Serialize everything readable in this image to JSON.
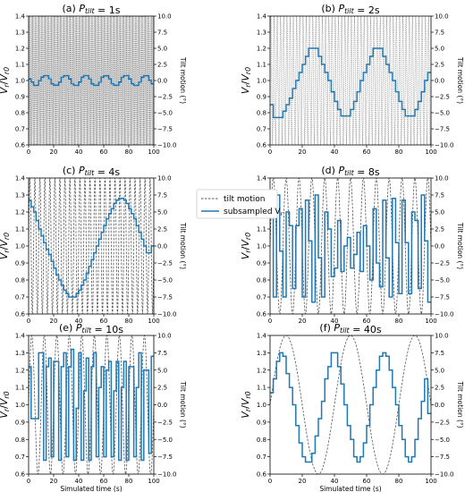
{
  "legend": {
    "tilt_label": "tilt motion",
    "sub_label": "subsampled V_r"
  },
  "shared": {
    "y_left_label": "V_r/V_r0",
    "y_right_label": "Tilt motion (°)",
    "x_label": "Simulated time (s)",
    "xlim": [
      0,
      100
    ],
    "xticks": [
      "0",
      "20",
      "40",
      "60",
      "80",
      "100"
    ],
    "ylim_left": [
      0.6,
      1.4
    ],
    "yticks_left": [
      "0.6",
      "0.7",
      "0.8",
      "0.9",
      "1.0",
      "1.1",
      "1.2",
      "1.3",
      "1.4"
    ],
    "ylim_right": [
      -10,
      10
    ],
    "yticks_right": [
      "-10.0",
      "-7.5",
      "-5.0",
      "-2.5",
      "0.0",
      "2.5",
      "5.0",
      "7.5",
      "10.0"
    ],
    "colors": {
      "subsampled": "#1f77b4",
      "tilt": "#555555"
    }
  },
  "chart_data": [
    {
      "type": "line",
      "title": "(a) P_tilt = 1s",
      "period_s": 1,
      "tilt_amplitude_deg": 10,
      "series": [
        {
          "name": "tilt motion",
          "style": "dashed",
          "axis": "right"
        },
        {
          "name": "subsampled V_r",
          "style": "step",
          "axis": "left",
          "x": [
            0,
            2,
            4,
            6,
            8,
            10,
            12,
            14,
            16,
            18,
            20,
            22,
            24,
            26,
            28,
            30,
            32,
            34,
            36,
            38,
            40,
            42,
            44,
            46,
            48,
            50,
            52,
            54,
            56,
            58,
            60,
            62,
            64,
            66,
            68,
            70,
            72,
            74,
            76,
            78,
            80,
            82,
            84,
            86,
            88,
            90,
            92,
            94,
            96,
            98
          ],
          "values": [
            1.01,
            0.99,
            0.97,
            0.97,
            1.0,
            1.02,
            1.03,
            1.03,
            1.01,
            0.98,
            0.97,
            0.97,
            0.99,
            1.02,
            1.03,
            1.03,
            1.01,
            0.98,
            0.97,
            0.97,
            0.99,
            1.02,
            1.03,
            1.03,
            1.01,
            0.98,
            0.97,
            0.97,
            0.99,
            1.02,
            1.03,
            1.03,
            1.01,
            0.98,
            0.97,
            0.97,
            0.99,
            1.02,
            1.03,
            1.03,
            1.01,
            0.98,
            0.97,
            0.97,
            0.99,
            1.02,
            1.03,
            1.03,
            1.0,
            0.98
          ]
        }
      ]
    },
    {
      "type": "line",
      "title": "(b) P_tilt = 2s",
      "period_s": 2,
      "tilt_amplitude_deg": 10,
      "series": [
        {
          "name": "tilt motion",
          "style": "dashed",
          "axis": "right"
        },
        {
          "name": "subsampled V_r",
          "style": "step",
          "axis": "left",
          "x": [
            0,
            2,
            4,
            6,
            8,
            10,
            12,
            14,
            16,
            18,
            20,
            22,
            24,
            26,
            28,
            30,
            32,
            34,
            36,
            38,
            40,
            42,
            44,
            46,
            48,
            50,
            52,
            54,
            56,
            58,
            60,
            62,
            64,
            66,
            68,
            70,
            72,
            74,
            76,
            78,
            80,
            82,
            84,
            86,
            88,
            90,
            92,
            94,
            96,
            98
          ],
          "values": [
            0.85,
            0.77,
            0.77,
            0.77,
            0.81,
            0.85,
            0.89,
            0.95,
            1.0,
            1.05,
            1.1,
            1.15,
            1.2,
            1.2,
            1.2,
            1.15,
            1.1,
            1.05,
            1.0,
            0.93,
            0.87,
            0.82,
            0.78,
            0.78,
            0.78,
            0.82,
            0.87,
            0.93,
            1.0,
            1.05,
            1.1,
            1.15,
            1.2,
            1.2,
            1.2,
            1.15,
            1.1,
            1.05,
            1.0,
            0.93,
            0.87,
            0.82,
            0.78,
            0.78,
            0.78,
            0.82,
            0.87,
            0.93,
            1.0,
            1.05
          ]
        }
      ]
    },
    {
      "type": "line",
      "title": "(c) P_tilt = 4s",
      "period_s": 4,
      "tilt_amplitude_deg": 10,
      "series": [
        {
          "name": "tilt motion",
          "style": "dashed",
          "axis": "right"
        },
        {
          "name": "subsampled V_r",
          "style": "step",
          "axis": "left",
          "x": [
            0,
            2,
            4,
            6,
            8,
            10,
            12,
            14,
            16,
            18,
            20,
            22,
            24,
            26,
            28,
            30,
            32,
            34,
            36,
            38,
            40,
            42,
            44,
            46,
            48,
            50,
            52,
            54,
            56,
            58,
            60,
            62,
            64,
            66,
            68,
            70,
            72,
            74,
            76,
            78,
            80,
            82,
            84,
            86,
            88,
            90,
            92,
            94,
            96,
            98
          ],
          "values": [
            1.27,
            1.23,
            1.2,
            1.15,
            1.1,
            1.06,
            1.02,
            0.98,
            0.95,
            0.91,
            0.87,
            0.83,
            0.8,
            0.77,
            0.74,
            0.72,
            0.7,
            0.7,
            0.7,
            0.72,
            0.74,
            0.77,
            0.8,
            0.84,
            0.88,
            0.92,
            0.96,
            1.0,
            1.04,
            1.08,
            1.12,
            1.16,
            1.19,
            1.22,
            1.25,
            1.27,
            1.28,
            1.28,
            1.27,
            1.25,
            1.22,
            1.19,
            1.16,
            1.12,
            1.08,
            1.04,
            1.0,
            0.96,
            0.96,
            1.0
          ]
        }
      ]
    },
    {
      "type": "line",
      "title": "(d) P_tilt = 8s",
      "period_s": 8,
      "tilt_amplitude_deg": 10,
      "series": [
        {
          "name": "tilt motion",
          "style": "dashed",
          "axis": "right"
        },
        {
          "name": "subsampled V_r",
          "style": "step",
          "axis": "left",
          "x": [
            0,
            2,
            4,
            6,
            8,
            10,
            12,
            14,
            16,
            18,
            20,
            22,
            24,
            26,
            28,
            30,
            32,
            34,
            36,
            38,
            40,
            42,
            44,
            46,
            48,
            50,
            52,
            54,
            56,
            58,
            60,
            62,
            64,
            66,
            68,
            70,
            72,
            74,
            76,
            78,
            80,
            82,
            84,
            86,
            88,
            90,
            92,
            94,
            96,
            98
          ],
          "values": [
            1.27,
            0.7,
            1.3,
            0.97,
            0.7,
            1.2,
            1.12,
            0.75,
            1.12,
            1.22,
            0.7,
            1.27,
            1.03,
            0.67,
            1.3,
            0.93,
            0.7,
            1.2,
            1.1,
            0.82,
            0.87,
            1.15,
            0.85,
            1.0,
            1.05,
            0.87,
            0.95,
            1.08,
            0.85,
            1.12,
            1.0,
            0.8,
            1.22,
            0.9,
            0.76,
            1.27,
            0.93,
            0.7,
            1.28,
            1.02,
            0.72,
            1.27,
            1.02,
            0.72,
            1.2,
            1.15,
            0.75,
            1.3,
            1.03,
            0.67
          ]
        }
      ]
    },
    {
      "type": "line",
      "title": "(e) P_tilt = 10s",
      "period_s": 10,
      "tilt_amplitude_deg": 10,
      "series": [
        {
          "name": "tilt motion",
          "style": "dashed",
          "axis": "right"
        },
        {
          "name": "subsampled V_r",
          "style": "step",
          "axis": "left",
          "x": [
            0,
            2,
            4,
            6,
            8,
            10,
            12,
            14,
            16,
            18,
            20,
            22,
            24,
            26,
            28,
            30,
            32,
            34,
            36,
            38,
            40,
            42,
            44,
            46,
            48,
            50,
            52,
            54,
            56,
            58,
            60,
            62,
            64,
            66,
            68,
            70,
            72,
            74,
            76,
            78,
            80,
            82,
            84,
            86,
            88,
            90,
            92,
            94,
            96,
            98
          ],
          "values": [
            1.22,
            0.92,
            0.92,
            0.92,
            1.3,
            1.3,
            0.68,
            1.22,
            1.27,
            0.7,
            1.25,
            1.25,
            0.68,
            1.22,
            1.3,
            0.7,
            1.22,
            1.32,
            0.68,
            0.98,
            1.3,
            0.68,
            1.08,
            1.27,
            0.68,
            1.22,
            1.3,
            0.7,
            1.1,
            1.22,
            0.7,
            1.2,
            1.25,
            0.7,
            1.08,
            1.25,
            0.68,
            1.1,
            1.25,
            0.68,
            1.22,
            1.22,
            0.7,
            1.1,
            1.3,
            0.68,
            1.2,
            1.2,
            0.72,
            1.28
          ]
        }
      ]
    },
    {
      "type": "line",
      "title": "(f) P_tilt = 40s",
      "period_s": 40,
      "tilt_amplitude_deg": 10,
      "series": [
        {
          "name": "tilt motion",
          "style": "dashed",
          "axis": "right"
        },
        {
          "name": "subsampled V_r",
          "style": "step",
          "axis": "left",
          "x": [
            0,
            2,
            4,
            6,
            8,
            10,
            12,
            14,
            16,
            18,
            20,
            22,
            24,
            26,
            28,
            30,
            32,
            34,
            36,
            38,
            40,
            42,
            44,
            46,
            48,
            50,
            52,
            54,
            56,
            58,
            60,
            62,
            64,
            66,
            68,
            70,
            72,
            74,
            76,
            78,
            80,
            82,
            84,
            86,
            88,
            90,
            92,
            94,
            96,
            98
          ],
          "values": [
            1.07,
            1.15,
            1.25,
            1.3,
            1.28,
            1.18,
            1.1,
            1.0,
            0.88,
            0.78,
            0.7,
            0.67,
            0.67,
            0.72,
            0.82,
            0.92,
            1.02,
            1.15,
            1.22,
            1.3,
            1.3,
            1.22,
            1.12,
            1.0,
            0.88,
            0.8,
            0.7,
            0.67,
            0.7,
            0.78,
            0.88,
            1.0,
            1.1,
            1.2,
            1.28,
            1.3,
            1.28,
            1.2,
            1.1,
            1.0,
            0.88,
            0.8,
            0.7,
            0.67,
            0.7,
            0.8,
            0.92,
            1.02,
            1.15,
            0.95
          ]
        }
      ]
    }
  ]
}
